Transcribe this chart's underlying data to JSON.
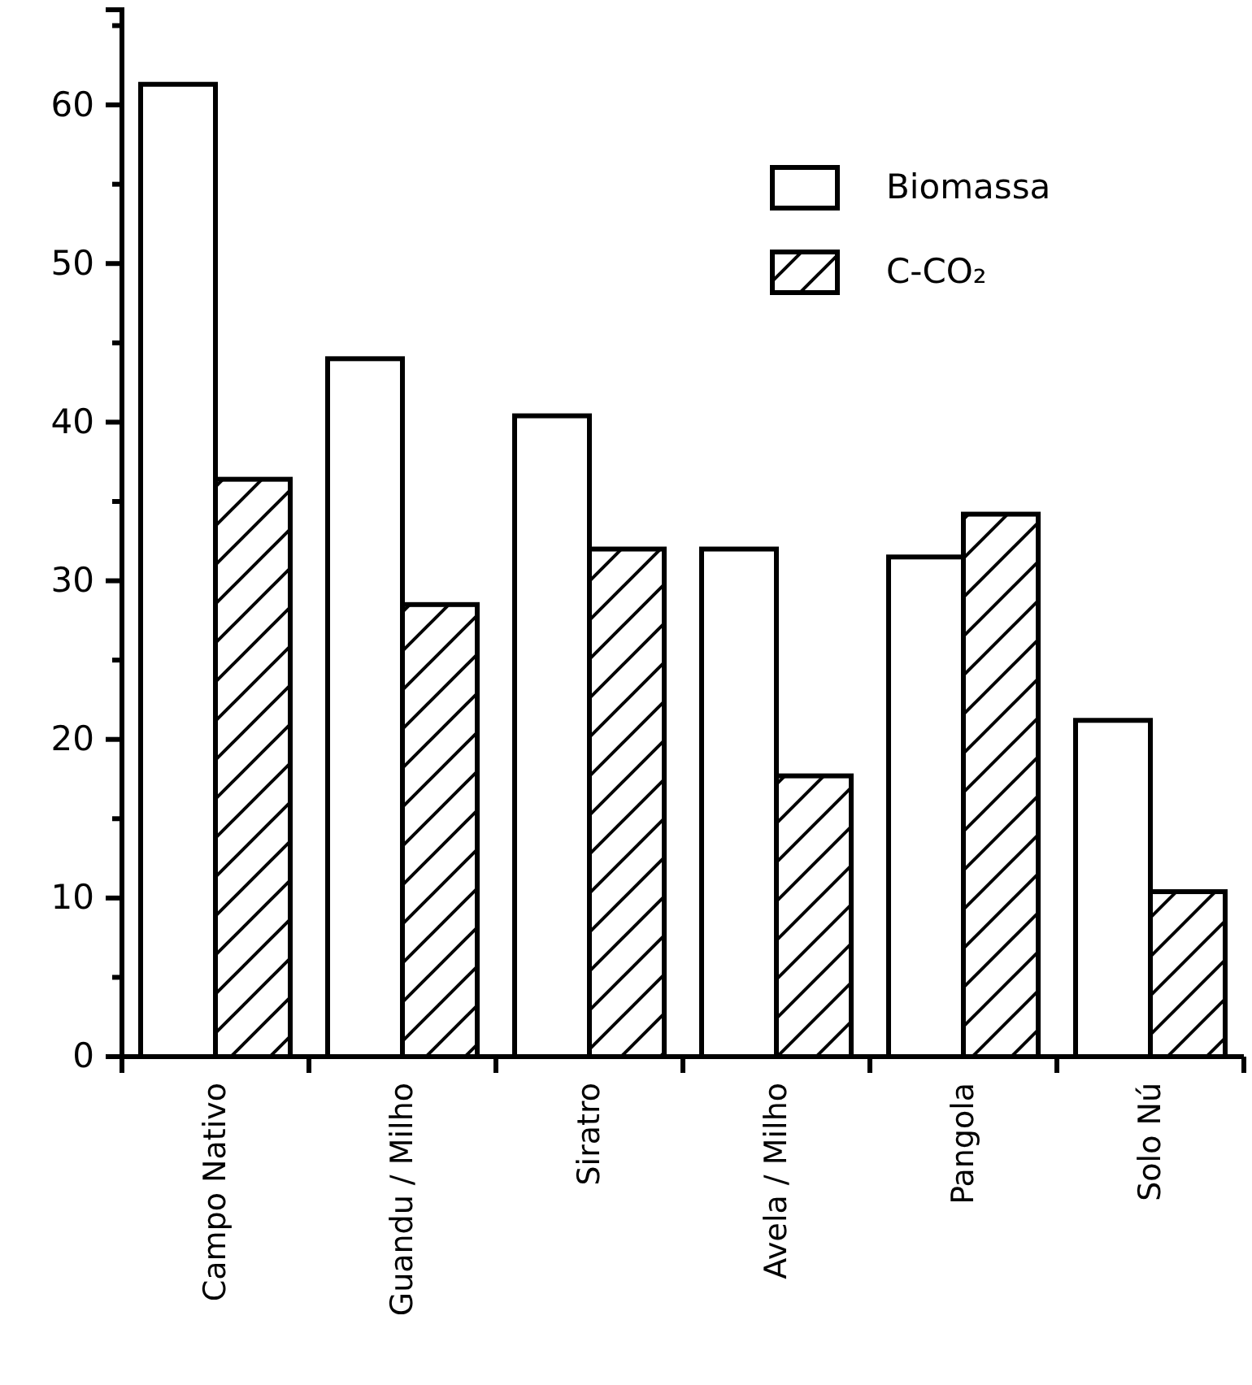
{
  "chart_data": {
    "type": "bar",
    "categories": [
      "Campo Nativo",
      "Guandu / Milho",
      "Siratro",
      "Avela / Milho",
      "Pangola",
      "Solo Nú"
    ],
    "series": [
      {
        "name": "Biomassa",
        "color": "#ffffff",
        "values": [
          61.3,
          44.0,
          40.4,
          32.0,
          31.5,
          21.2
        ]
      },
      {
        "name": "C-CO₂",
        "color": "#000000",
        "values": [
          36.4,
          28.5,
          32.0,
          17.7,
          34.2,
          10.4
        ]
      }
    ],
    "ylim": [
      0,
      66
    ],
    "yticks": [
      0,
      {
        "value": 5,
        "label": null
      },
      10,
      {
        "value": 15,
        "label": null
      },
      20,
      {
        "value": 25,
        "label": null
      },
      30,
      {
        "value": 35,
        "label": null
      },
      40,
      {
        "value": 45,
        "label": null
      },
      50,
      {
        "value": 55,
        "label": null
      },
      60,
      {
        "value": 65,
        "label": null
      }
    ],
    "legend": "top right",
    "grid": false
  }
}
